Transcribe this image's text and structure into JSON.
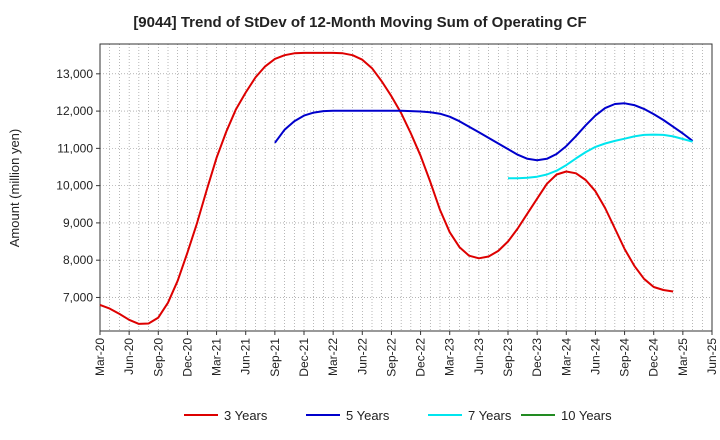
{
  "chart_data": {
    "type": "line",
    "title": "[9044]  Trend of StDev of 12-Month Moving Sum of Operating CF",
    "xlabel": "",
    "ylabel": "Amount (million yen)",
    "ylim": [
      6100,
      13800
    ],
    "yticks": [
      7000,
      8000,
      9000,
      10000,
      11000,
      12000,
      13000
    ],
    "ytick_labels": [
      "7,000",
      "8,000",
      "9,000",
      "10,000",
      "11,000",
      "12,000",
      "13,000"
    ],
    "x_index_range": [
      0,
      63
    ],
    "xtick_labels": [
      "Mar-20",
      "Jun-20",
      "Sep-20",
      "Dec-20",
      "Mar-21",
      "Jun-21",
      "Sep-21",
      "Dec-21",
      "Mar-22",
      "Jun-22",
      "Sep-22",
      "Dec-22",
      "Mar-23",
      "Jun-23",
      "Sep-23",
      "Dec-23",
      "Mar-24",
      "Jun-24",
      "Sep-24",
      "Dec-24",
      "Mar-25",
      "Jun-25"
    ],
    "grid": true,
    "legend_position": "bottom",
    "series": [
      {
        "name": "3 Years",
        "color": "#dd0000",
        "start_index": 0,
        "values": [
          6800,
          6700,
          6560,
          6400,
          6290,
          6300,
          6460,
          6860,
          7450,
          8200,
          9000,
          9900,
          10750,
          11450,
          12050,
          12500,
          12900,
          13200,
          13400,
          13500,
          13550,
          13560,
          13560,
          13560,
          13560,
          13550,
          13500,
          13380,
          13150,
          12800,
          12400,
          11950,
          11400,
          10800,
          10100,
          9350,
          8750,
          8350,
          8120,
          8050,
          8100,
          8250,
          8500,
          8850,
          9250,
          9650,
          10050,
          10300,
          10380,
          10330,
          10150,
          9850,
          9400,
          8850,
          8300,
          7850,
          7500,
          7280,
          7200,
          7160
        ]
      },
      {
        "name": "5 Years",
        "color": "#0000cc",
        "start_index": 18,
        "values": [
          11150,
          11500,
          11730,
          11880,
          11960,
          12000,
          12010,
          12010,
          12010,
          12010,
          12010,
          12010,
          12010,
          12010,
          12000,
          11990,
          11970,
          11930,
          11850,
          11730,
          11580,
          11430,
          11280,
          11130,
          10980,
          10830,
          10720,
          10680,
          10720,
          10850,
          11060,
          11330,
          11620,
          11880,
          12080,
          12190,
          12210,
          12160,
          12060,
          11920,
          11760,
          11580,
          11400,
          11200
        ]
      },
      {
        "name": "7 Years",
        "color": "#00e5ee",
        "start_index": 42,
        "values": [
          10200,
          10200,
          10210,
          10240,
          10300,
          10400,
          10550,
          10730,
          10900,
          11040,
          11130,
          11200,
          11260,
          11320,
          11360,
          11370,
          11360,
          11320,
          11250,
          11180
        ]
      },
      {
        "name": "10 Years",
        "color": "#228b22",
        "start_index": 0,
        "values": []
      }
    ]
  }
}
